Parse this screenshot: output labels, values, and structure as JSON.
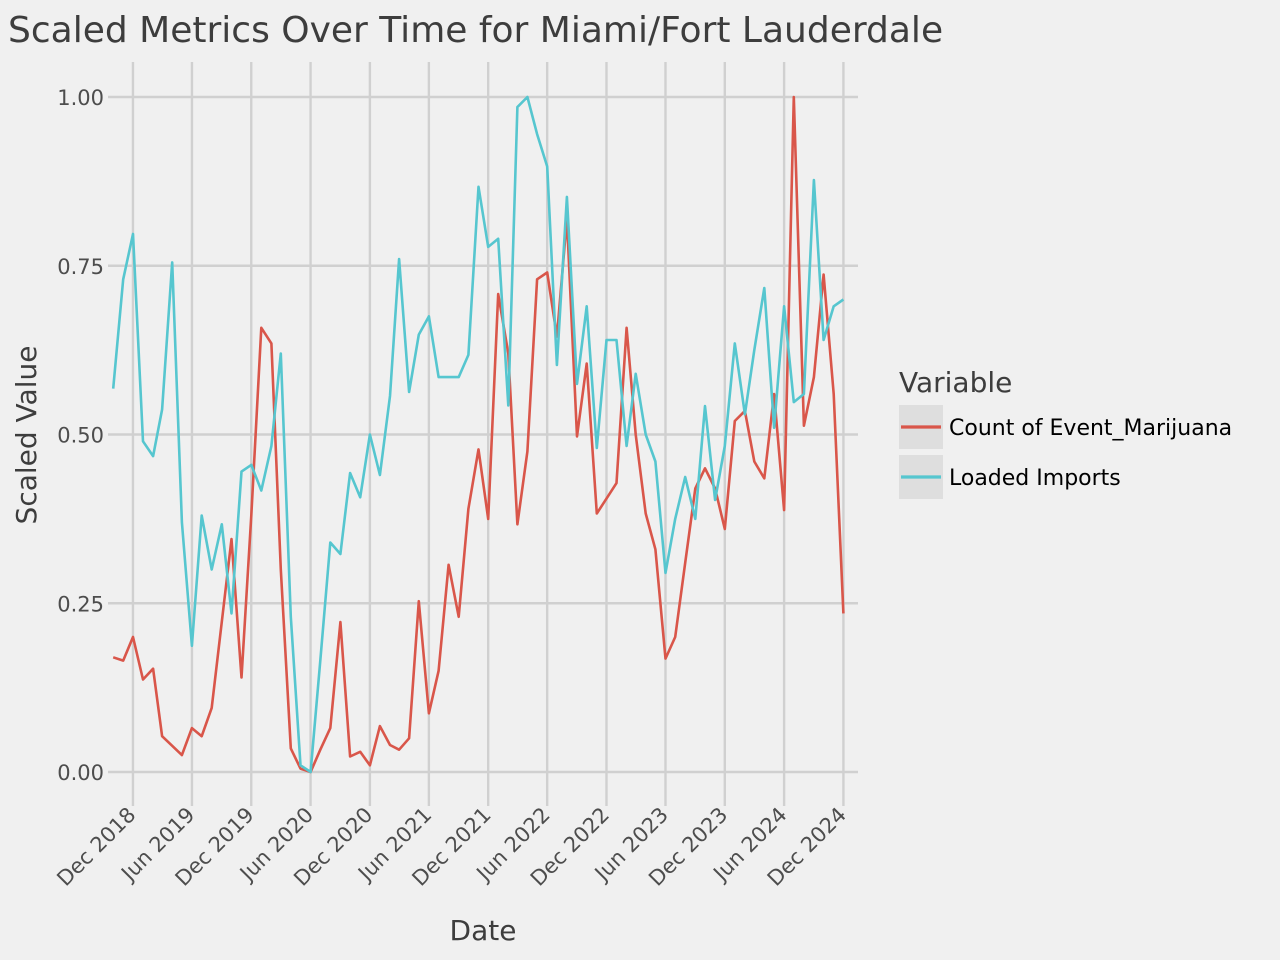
{
  "chart_data": {
    "type": "line",
    "title": "Scaled Metrics Over Time for Miami/Fort Lauderdale",
    "xlabel": "Date",
    "ylabel": "Scaled Value",
    "ylim": [
      0,
      1
    ],
    "yticks": [
      0.0,
      0.25,
      0.5,
      0.75,
      1.0
    ],
    "ytick_labels": [
      "0.00",
      "0.25",
      "0.50",
      "0.75",
      "1.00"
    ],
    "xticks": [
      "2018-12-01",
      "2019-06-01",
      "2019-12-01",
      "2020-06-01",
      "2020-12-01",
      "2021-06-01",
      "2021-12-01",
      "2022-06-01",
      "2022-12-01",
      "2023-06-01",
      "2023-12-01",
      "2024-06-01",
      "2024-12-01"
    ],
    "xtick_labels": [
      "Dec 2018",
      "Jun 2019",
      "Dec 2019",
      "Jun 2020",
      "Dec 2020",
      "Jun 2021",
      "Dec 2021",
      "Jun 2022",
      "Dec 2022",
      "Jun 2023",
      "Dec 2023",
      "Jun 2024",
      "Dec 2024"
    ],
    "xlim": [
      "2018-09-15",
      "2025-01-15"
    ],
    "grid": true,
    "legend": {
      "title": "Variable",
      "position": "right"
    },
    "x": [
      "2018-10-01",
      "2018-11-01",
      "2018-12-01",
      "2019-01-01",
      "2019-02-01",
      "2019-03-01",
      "2019-04-01",
      "2019-05-01",
      "2019-06-01",
      "2019-07-01",
      "2019-08-01",
      "2019-09-01",
      "2019-10-01",
      "2019-11-01",
      "2019-12-01",
      "2020-01-01",
      "2020-02-01",
      "2020-03-01",
      "2020-04-01",
      "2020-05-01",
      "2020-06-01",
      "2020-07-01",
      "2020-08-01",
      "2020-09-01",
      "2020-10-01",
      "2020-11-01",
      "2020-12-01",
      "2021-01-01",
      "2021-02-01",
      "2021-03-01",
      "2021-04-01",
      "2021-05-01",
      "2021-06-01",
      "2021-07-01",
      "2021-08-01",
      "2021-09-01",
      "2021-10-01",
      "2021-11-01",
      "2021-12-01",
      "2022-01-01",
      "2022-02-01",
      "2022-03-01",
      "2022-04-01",
      "2022-05-01",
      "2022-06-01",
      "2022-07-01",
      "2022-08-01",
      "2022-09-01",
      "2022-10-01",
      "2022-11-01",
      "2022-12-01",
      "2023-01-01",
      "2023-02-01",
      "2023-03-01",
      "2023-04-01",
      "2023-05-01",
      "2023-06-01",
      "2023-07-01",
      "2023-08-01",
      "2023-09-01",
      "2023-10-01",
      "2023-11-01",
      "2023-12-01",
      "2024-01-01",
      "2024-02-01",
      "2024-03-01",
      "2024-04-01",
      "2024-05-01",
      "2024-06-01",
      "2024-07-01",
      "2024-08-01",
      "2024-09-01",
      "2024-10-01",
      "2024-11-01",
      "2024-12-01"
    ],
    "series": [
      {
        "name": "Count of Event_Marijuana",
        "color": "#d9564a",
        "values": [
          0.17,
          0.165,
          0.2,
          0.137,
          0.153,
          0.053,
          null,
          0.025,
          0.065,
          0.053,
          0.095,
          null,
          0.345,
          0.14,
          0.38,
          0.658,
          0.635,
          0.3,
          0.035,
          0.005,
          0.0,
          0.033,
          0.065,
          0.222,
          0.023,
          0.03,
          0.01,
          0.068,
          0.04,
          0.033,
          0.05,
          0.253,
          0.087,
          0.15,
          0.307,
          0.23,
          0.39,
          0.478,
          0.375,
          0.708,
          0.62,
          0.367,
          0.475,
          0.73,
          0.74,
          0.645,
          0.82,
          0.497,
          0.605,
          0.383,
          0.405,
          0.428,
          0.658,
          0.5,
          0.383,
          0.33,
          0.168,
          0.2,
          0.31,
          0.42,
          0.45,
          0.42,
          0.36,
          0.52,
          0.535,
          0.46,
          0.435,
          0.56,
          0.388,
          1.0,
          0.513,
          0.585,
          0.737,
          0.56,
          0.235
        ]
      },
      {
        "name": "Loaded Imports",
        "color": "#56c6cf",
        "values": [
          0.568,
          0.73,
          0.797,
          0.49,
          0.468,
          0.537,
          0.755,
          0.37,
          0.187,
          0.38,
          0.3,
          0.367,
          0.235,
          0.445,
          0.455,
          0.417,
          0.483,
          0.62,
          0.23,
          0.01,
          0.0,
          0.165,
          0.34,
          0.323,
          0.443,
          0.407,
          0.5,
          0.44,
          0.557,
          0.76,
          0.563,
          0.648,
          0.675,
          0.585,
          0.585,
          0.585,
          0.618,
          0.867,
          0.778,
          0.79,
          0.543,
          0.985,
          1.0,
          0.945,
          0.897,
          0.603,
          0.852,
          0.575,
          0.69,
          0.48,
          0.64,
          0.64,
          0.483,
          0.59,
          0.5,
          0.46,
          0.295,
          0.375,
          0.437,
          0.375,
          0.542,
          0.403,
          0.483,
          0.635,
          0.53,
          0.625,
          0.717,
          0.51,
          0.69,
          0.548,
          0.56,
          0.877,
          0.64,
          0.69,
          0.7
        ]
      }
    ]
  }
}
